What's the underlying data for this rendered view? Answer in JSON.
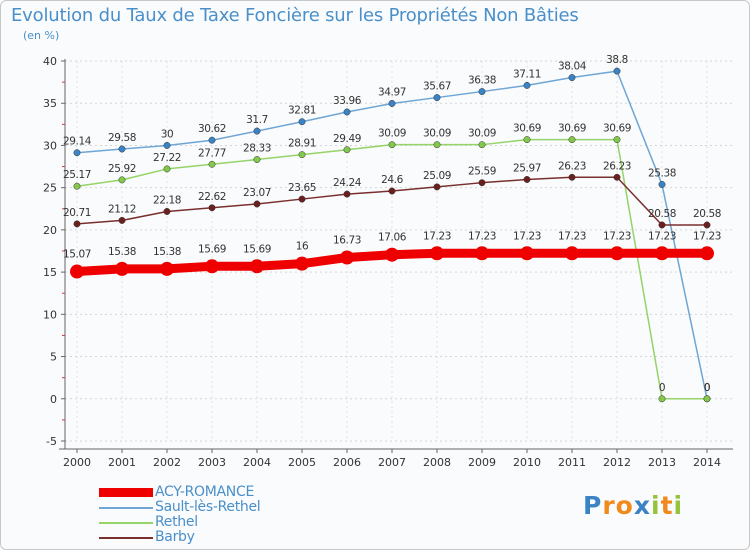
{
  "chart_data": {
    "type": "line",
    "title": "Evolution du Taux de Taxe Foncière sur les Propriétés Non Bâties",
    "subtitle": "(en %)",
    "xlabel": "",
    "ylabel": "(en %)",
    "ylim": [
      -5,
      40
    ],
    "yticks": [
      -5,
      0,
      5,
      10,
      15,
      20,
      25,
      30,
      35,
      40
    ],
    "categories": [
      "2000",
      "2001",
      "2002",
      "2003",
      "2004",
      "2005",
      "2006",
      "2007",
      "2008",
      "2009",
      "2010",
      "2011",
      "2012",
      "2013",
      "2014"
    ],
    "series": [
      {
        "name": "Sault-lès-Rethel",
        "color": "#6ea6d6",
        "marker": "#3a83c4",
        "values": [
          29.14,
          29.58,
          30,
          30.62,
          31.7,
          32.81,
          33.96,
          34.97,
          35.67,
          36.38,
          37.11,
          38.04,
          38.8,
          25.38,
          0
        ],
        "labels": [
          "29.14",
          "29.58",
          "30",
          "30.62",
          "31.7",
          "32.81",
          "33.96",
          "34.97",
          "35.67",
          "36.38",
          "37.11",
          "38.04",
          "38.8",
          "25.38",
          "0"
        ]
      },
      {
        "name": "Rethel",
        "color": "#94d468",
        "marker": "#82c84a",
        "values": [
          25.17,
          25.92,
          27.22,
          27.77,
          28.33,
          28.91,
          29.49,
          30.09,
          30.09,
          30.09,
          30.69,
          30.69,
          30.69,
          0,
          0
        ],
        "labels": [
          "25.17",
          "25.92",
          "27.22",
          "27.77",
          "28.33",
          "28.91",
          "29.49",
          "30.09",
          "30.09",
          "30.09",
          "30.69",
          "30.69",
          "30.69",
          "0",
          "0"
        ]
      },
      {
        "name": "Barby",
        "color": "#7a2f2f",
        "marker": "#6b2020",
        "values": [
          20.71,
          21.12,
          22.18,
          22.62,
          23.07,
          23.65,
          24.24,
          24.6,
          25.09,
          25.59,
          25.97,
          26.23,
          26.23,
          20.58,
          20.58
        ],
        "labels": [
          "20.71",
          "21.12",
          "22.18",
          "22.62",
          "23.07",
          "23.65",
          "24.24",
          "24.6",
          "25.09",
          "25.59",
          "25.97",
          "26.23",
          "26.23",
          "20.58",
          "20.58"
        ]
      },
      {
        "name": "ACY-ROMANCE",
        "color": "#ee0000",
        "marker": "#ee0000",
        "values": [
          15.07,
          15.38,
          15.38,
          15.69,
          15.69,
          16,
          16.73,
          17.06,
          17.23,
          17.23,
          17.23,
          17.23,
          17.23,
          17.23,
          17.23
        ],
        "labels": [
          "15.07",
          "15.38",
          "15.38",
          "15.69",
          "15.69",
          "16",
          "16.73",
          "17.06",
          "17.23",
          "17.23",
          "17.23",
          "17.23",
          "17.23",
          "17.23",
          "17.23"
        ]
      }
    ],
    "legend": [
      "ACY-ROMANCE",
      "Sault-lès-Rethel",
      "Rethel",
      "Barby"
    ],
    "legend_position": "bottom-left"
  },
  "legend": {
    "items": [
      {
        "label": "ACY-ROMANCE",
        "color": "#ee0000"
      },
      {
        "label": "Sault-lès-Rethel",
        "color": "#6ea6d6"
      },
      {
        "label": "Rethel",
        "color": "#94d468"
      },
      {
        "label": "Barby",
        "color": "#7a2f2f"
      }
    ]
  },
  "brand": {
    "letters": [
      "P",
      "r",
      "o",
      "x",
      "i",
      "t",
      "i"
    ],
    "colors": [
      "#3a83c4",
      "#f08a1c",
      "#f08a1c",
      "#3a83c4",
      "#94c43c",
      "#f08a1c",
      "#94c43c"
    ]
  }
}
